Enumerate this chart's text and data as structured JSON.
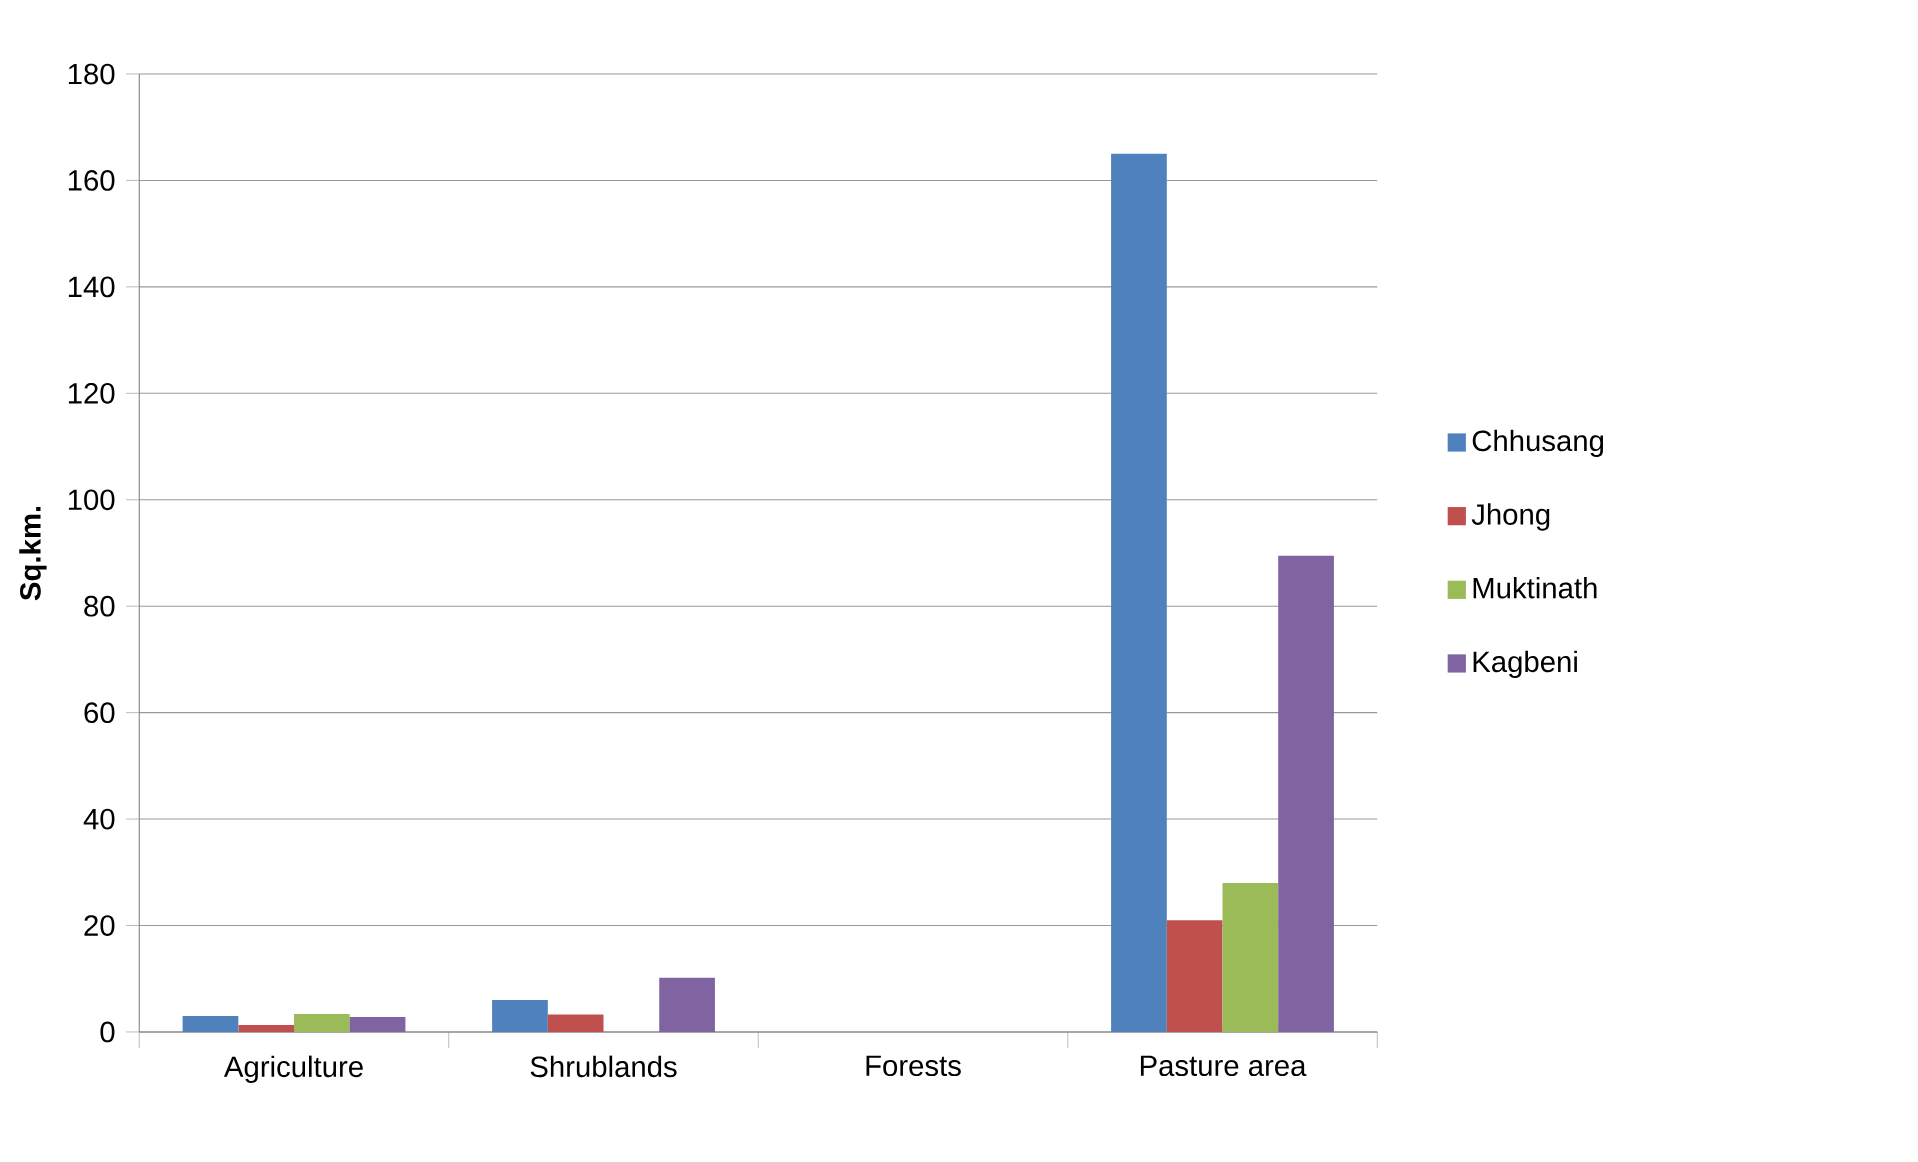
{
  "chart_data": {
    "type": "bar",
    "ylabel": "Sq.km.",
    "categories": [
      "Agriculture",
      "Shrublands",
      "Forests",
      "Pasture area"
    ],
    "series": [
      {
        "name": "Chhusang",
        "color": "#4f81bd",
        "values": [
          3.0,
          6.0,
          0,
          165
        ]
      },
      {
        "name": "Jhong",
        "color": "#c0504d",
        "values": [
          1.3,
          3.3,
          0,
          21
        ]
      },
      {
        "name": "Muktinath",
        "color": "#9bbb59",
        "values": [
          3.4,
          0,
          0,
          28
        ]
      },
      {
        "name": "Kagbeni",
        "color": "#8064a2",
        "values": [
          2.8,
          10.2,
          0,
          89.5
        ]
      }
    ],
    "ylim": [
      0,
      180
    ],
    "yticks": [
      0,
      20,
      40,
      60,
      80,
      100,
      120,
      140,
      160,
      180
    ],
    "grid": "y",
    "legend": "right"
  }
}
